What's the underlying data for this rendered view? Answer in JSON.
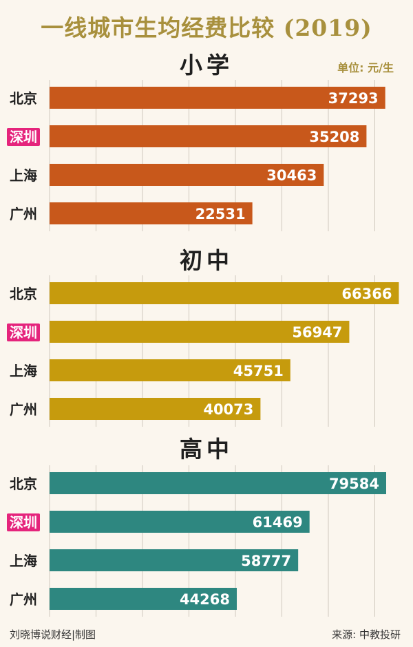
{
  "title": "一线城市生均经费比较 (2019)",
  "unit": "单位: 元/生",
  "footer": {
    "left": "刘晓博说财经|制图",
    "right": "来源: 中教投研"
  },
  "colors": {
    "primary": "#c8581b",
    "middle": "#c69b0d",
    "high": "#2e8780",
    "highlight_city": "#e5247c",
    "city_text": "#1f1f1f",
    "grid": "#cfc8bd"
  },
  "chart_data": [
    {
      "type": "bar",
      "title": "小学",
      "categories": [
        "北京",
        "深圳",
        "上海",
        "广州"
      ],
      "values": [
        37293,
        35208,
        30463,
        22531
      ],
      "xlim": [
        0,
        39000
      ],
      "highlight": "深圳"
    },
    {
      "type": "bar",
      "title": "初中",
      "categories": [
        "北京",
        "深圳",
        "上海",
        "广州"
      ],
      "values": [
        66366,
        56947,
        45751,
        40073
      ],
      "xlim": [
        0,
        66700
      ],
      "highlight": "深圳"
    },
    {
      "type": "bar",
      "title": "高中",
      "categories": [
        "北京",
        "深圳",
        "上海",
        "广州"
      ],
      "values": [
        79584,
        61469,
        58777,
        44268
      ],
      "xlim": [
        0,
        83000
      ],
      "highlight": "深圳"
    }
  ]
}
